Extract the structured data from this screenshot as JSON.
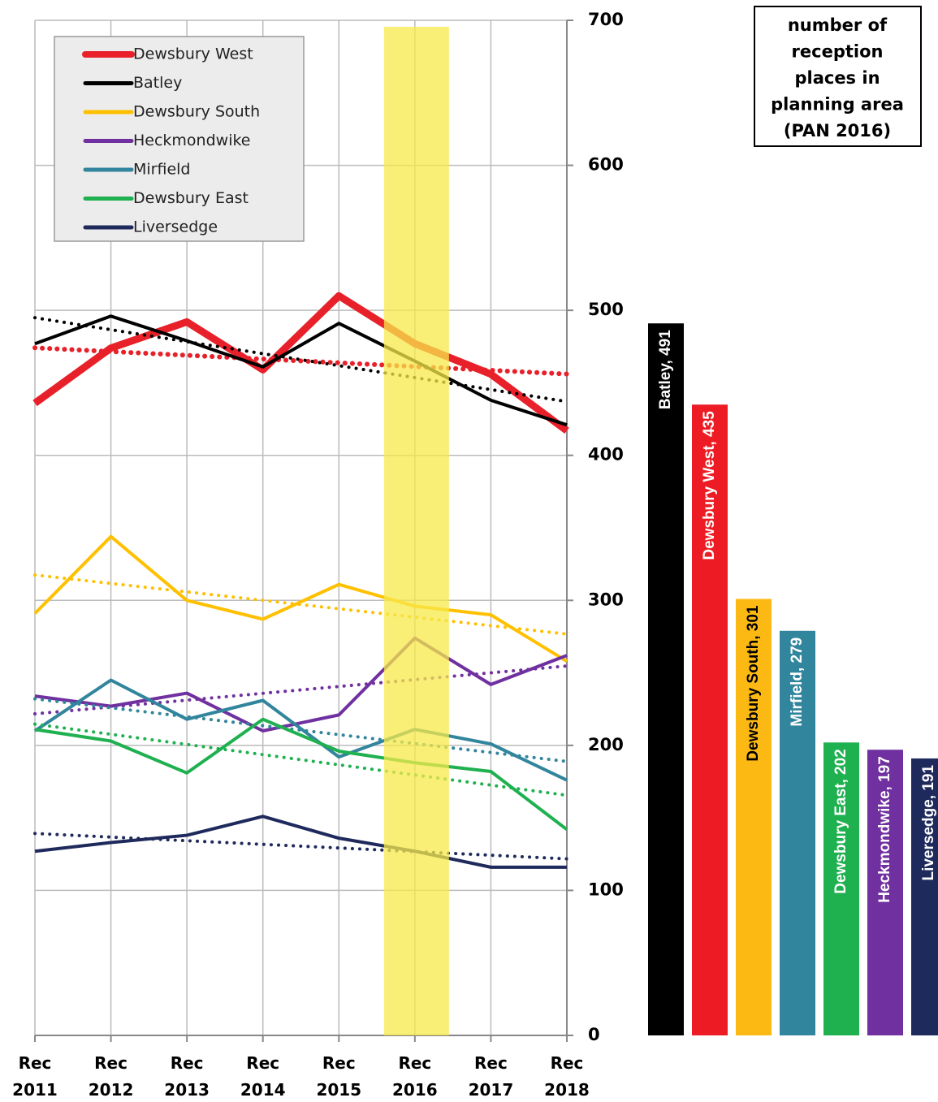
{
  "chart_data": [
    {
      "type": "line",
      "categories": [
        "Rec 2011",
        "Rec 2012",
        "Rec 2013",
        "Rec 2014",
        "Rec 2015",
        "Rec 2016",
        "Rec 2017",
        "Rec 2018"
      ],
      "series": [
        {
          "name": "Dewsbury West",
          "color": "#e8202a",
          "values": [
            436,
            474,
            492,
            459,
            510,
            477,
            456,
            417
          ]
        },
        {
          "name": "Batley",
          "color": "#000000",
          "values": [
            477,
            496,
            479,
            461,
            491,
            465,
            438,
            421
          ]
        },
        {
          "name": "Dewsbury South",
          "color": "#ffc000",
          "values": [
            291,
            344,
            300,
            287,
            311,
            296,
            290,
            258
          ]
        },
        {
          "name": "Heckmondwike",
          "color": "#7030a0",
          "values": [
            234,
            227,
            236,
            210,
            221,
            274,
            242,
            262
          ]
        },
        {
          "name": "Mirfield",
          "color": "#31859c",
          "values": [
            210,
            245,
            218,
            231,
            192,
            211,
            201,
            176
          ]
        },
        {
          "name": "Dewsbury East",
          "color": "#1fb050",
          "values": [
            211,
            203,
            181,
            218,
            196,
            188,
            182,
            142
          ]
        },
        {
          "name": "Liversedge",
          "color": "#1f2a5c",
          "values": [
            127,
            133,
            138,
            151,
            136,
            127,
            116,
            116
          ]
        }
      ],
      "ylim": [
        0,
        700
      ],
      "yticks": [
        0,
        100,
        200,
        300,
        400,
        500,
        600,
        700
      ],
      "grid": true,
      "trendline": true,
      "highlight_category": "Rec 2016",
      "highlight_color": "#f7e94a",
      "legend": "upper left"
    },
    {
      "type": "bar",
      "annotation": [
        "number of",
        "reception",
        "places in",
        "planning area",
        "(PAN 2016)"
      ],
      "categories": [
        "Batley",
        "Dewsbury West",
        "Dewsbury South",
        "Mirfield",
        "Dewsbury East",
        "Heckmondwike",
        "Liversedge"
      ],
      "values": [
        491,
        435,
        301,
        279,
        202,
        197,
        191
      ],
      "value_labels": [
        "Batley, 491",
        "Dewsbury West, 435",
        "Dewsbury South, 301",
        "Mirfield, 279",
        "Dewsbury East, 202",
        "Heckmondwike, 197",
        "Liversedge, 191"
      ],
      "colors": [
        "#000000",
        "#ed1c24",
        "#fdb913",
        "#31859c",
        "#1fb050",
        "#7030a0",
        "#1f2a5c"
      ],
      "ylim": [
        0,
        700
      ]
    }
  ]
}
